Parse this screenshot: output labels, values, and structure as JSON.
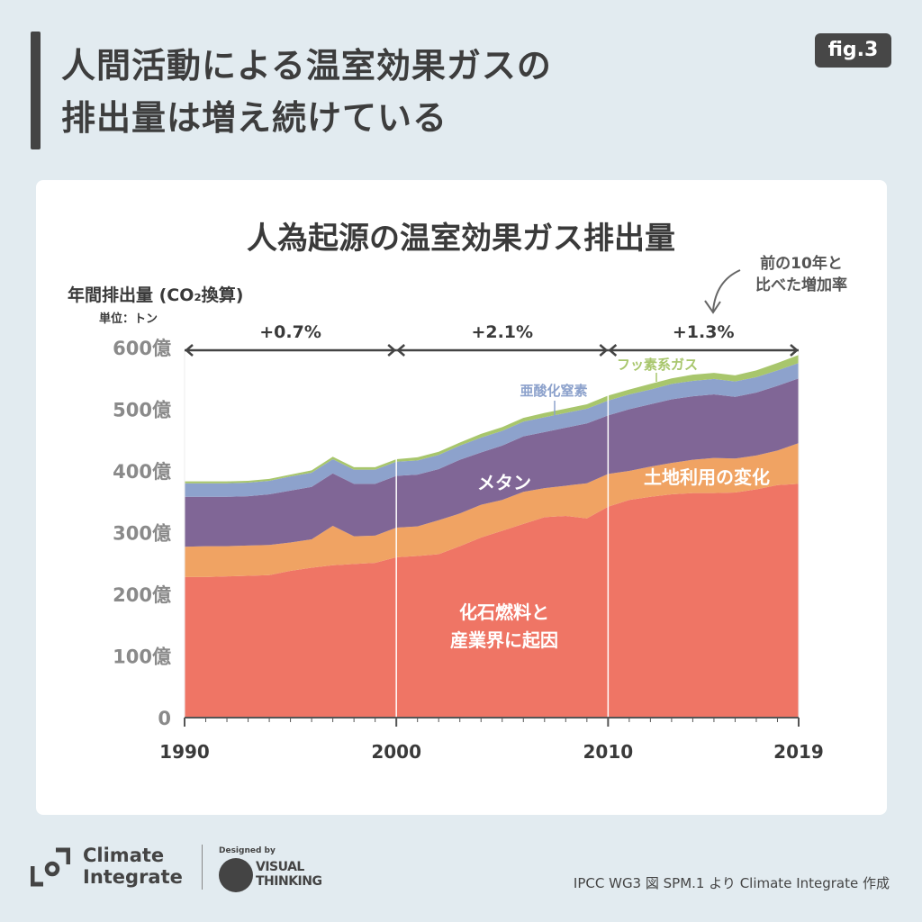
{
  "header": {
    "title_line1": "人間活動による温室効果ガスの",
    "title_line2": "排出量は増え続けている",
    "badge": "fig.3"
  },
  "chart_data": {
    "type": "area",
    "stacked": true,
    "title": "人為起源の温室効果ガス排出量",
    "ylabel": "年間排出量 (CO₂換算)",
    "unit_note": "単位：トン",
    "ylim": [
      0,
      600
    ],
    "yticks": [
      0,
      100,
      200,
      300,
      400,
      500,
      600
    ],
    "ytick_labels": [
      "0",
      "100億",
      "200億",
      "300億",
      "400億",
      "500億",
      "600億"
    ],
    "xlim": [
      1990,
      2019
    ],
    "xticks": [
      1990,
      2000,
      2010,
      2019
    ],
    "xtick_labels": [
      "1990",
      "2000",
      "2010",
      "2019"
    ],
    "y_units": "億トン",
    "x": [
      1990,
      1991,
      1992,
      1993,
      1994,
      1995,
      1996,
      1997,
      1998,
      1999,
      2000,
      2001,
      2002,
      2003,
      2004,
      2005,
      2006,
      2007,
      2008,
      2009,
      2010,
      2011,
      2012,
      2013,
      2014,
      2015,
      2016,
      2017,
      2018,
      2019
    ],
    "series": [
      {
        "name": "化石燃料と産業界に起因",
        "color": "#ef7565",
        "values": [
          228,
          228,
          229,
          230,
          231,
          238,
          243,
          247,
          249,
          251,
          260,
          262,
          265,
          278,
          292,
          303,
          314,
          325,
          327,
          323,
          342,
          353,
          358,
          362,
          364,
          364,
          365,
          370,
          377,
          379
        ]
      },
      {
        "name": "土地利用の変化",
        "color": "#f0a363",
        "values": [
          49,
          50,
          49,
          49,
          49,
          46,
          46,
          64,
          45,
          44,
          48,
          48,
          55,
          53,
          53,
          50,
          52,
          47,
          49,
          57,
          53,
          47,
          49,
          51,
          54,
          57,
          55,
          55,
          56,
          66
        ]
      },
      {
        "name": "メタン",
        "color": "#806696",
        "values": [
          81,
          80,
          80,
          80,
          82,
          84,
          85,
          85,
          85,
          84,
          84,
          84,
          83,
          87,
          85,
          88,
          90,
          91,
          94,
          97,
          95,
          100,
          101,
          103,
          103,
          103,
          100,
          102,
          105,
          105
        ]
      },
      {
        "name": "亜酸化窒素",
        "color": "#8da2cc",
        "values": [
          22,
          22,
          22,
          22,
          22,
          23,
          23,
          23,
          23,
          23,
          23,
          23,
          23,
          23,
          24,
          24,
          24,
          24,
          24,
          24,
          24,
          24,
          24,
          25,
          25,
          25,
          25,
          25,
          25,
          25
        ]
      },
      {
        "name": "フッ素系ガス",
        "color": "#a8c66c",
        "values": [
          3,
          3,
          3,
          3,
          3,
          3,
          4,
          4,
          4,
          4,
          4,
          5,
          5,
          5,
          6,
          6,
          6,
          7,
          7,
          7,
          8,
          8,
          9,
          9,
          10,
          10,
          10,
          11,
          12,
          13
        ]
      }
    ],
    "periods": [
      {
        "from": 1990,
        "to": 2000,
        "label": "+0.7%"
      },
      {
        "from": 2000,
        "to": 2010,
        "label": "+2.1%"
      },
      {
        "from": 2010,
        "to": 2019,
        "label": "+1.3%"
      }
    ],
    "annotation_line1": "前の10年と",
    "annotation_line2": "比べた増加率",
    "label_fossil_line1": "化石燃料と",
    "label_fossil_line2": "産業界に起因",
    "grid": false,
    "legend": "inline labels"
  },
  "footer": {
    "brand_line1": "Climate",
    "brand_line2": "Integrate",
    "designed_by": "Designed by",
    "designer_line1": "VISUAL",
    "designer_line2": "THINKING",
    "source": "IPCC WG3 図 SPM.1 より Climate Integrate 作成"
  }
}
